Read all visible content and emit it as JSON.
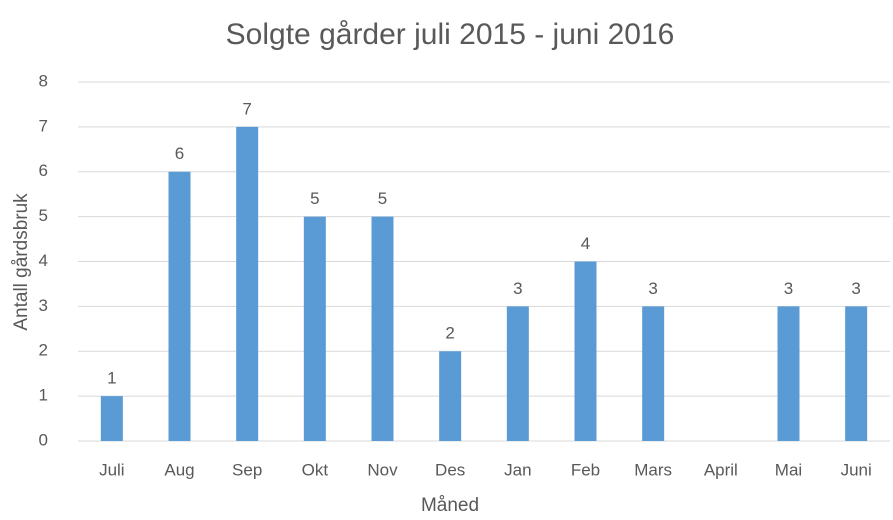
{
  "chart_data": {
    "type": "bar",
    "title": "Solgte gårder juli 2015 - juni 2016",
    "x_label": "Måned",
    "y_label": "Antall gårdsbruk",
    "categories": [
      "Juli",
      "Aug",
      "Sep",
      "Okt",
      "Nov",
      "Des",
      "Jan",
      "Feb",
      "Mars",
      "April",
      "Mai",
      "Juni"
    ],
    "values": [
      1,
      6,
      7,
      5,
      5,
      2,
      3,
      4,
      3,
      null,
      3,
      3
    ],
    "color": "#5b9bd5",
    "ylim": [
      0,
      8
    ],
    "yticks": [
      0,
      1,
      2,
      3,
      4,
      5,
      6,
      7,
      8
    ],
    "grid": true
  }
}
